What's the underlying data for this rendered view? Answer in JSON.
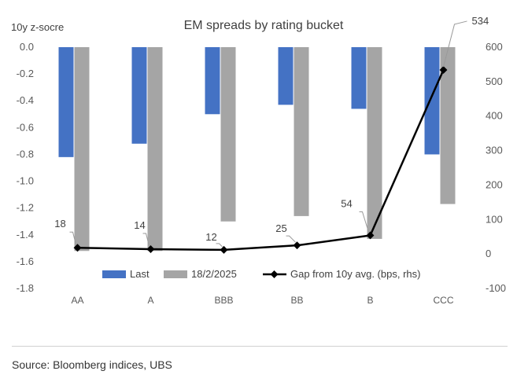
{
  "chart_data": {
    "type": "bar",
    "title": "EM spreads by rating bucket",
    "ylabel": "10y z-socre",
    "categories": [
      "AA",
      "A",
      "BBB",
      "BB",
      "B",
      "CCC"
    ],
    "ylim": [
      -1.8,
      0.0
    ],
    "yticks": [
      "0.0",
      "-0.2",
      "-0.4",
      "-0.6",
      "-0.8",
      "-1.0",
      "-1.2",
      "-1.4",
      "-1.6",
      "-1.8"
    ],
    "y2lim": [
      -100,
      600
    ],
    "y2ticks": [
      "600",
      "500",
      "400",
      "300",
      "200",
      "100",
      "0",
      "-100"
    ],
    "series": [
      {
        "name": "Last",
        "kind": "bar",
        "axis": "left",
        "color": "#4472C4",
        "values": [
          -0.82,
          -0.72,
          -0.5,
          -0.43,
          -0.46,
          -0.8
        ]
      },
      {
        "name": "18/2/2025",
        "kind": "bar",
        "axis": "left",
        "color": "#A5A5A5",
        "values": [
          -1.52,
          -1.52,
          -1.3,
          -1.26,
          -1.43,
          -1.17
        ]
      },
      {
        "name": "Gap from 10y avg. (bps, rhs)",
        "kind": "line",
        "axis": "right",
        "color": "#000000",
        "values": [
          18,
          14,
          12,
          25,
          54,
          534
        ],
        "labels": [
          "18",
          "14",
          "12",
          "25",
          "54",
          "534"
        ]
      }
    ],
    "grid": false,
    "legend_position": "bottom-inside"
  },
  "footer": {
    "source": "Source: Bloomberg indices, UBS"
  }
}
